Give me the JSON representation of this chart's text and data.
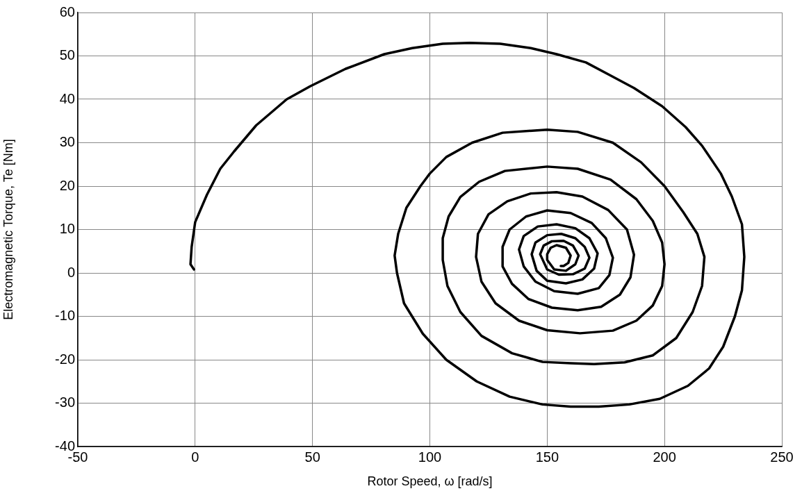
{
  "chart_data": {
    "type": "line",
    "xlabel": "Rotor Speed, ω [rad/s]",
    "ylabel": "Electromagnetic Torque, Te [Nm]",
    "xlim": [
      -50,
      250
    ],
    "ylim": [
      -40,
      60
    ],
    "xticks": [
      -50,
      0,
      50,
      100,
      150,
      200,
      250
    ],
    "yticks": [
      -40,
      -30,
      -20,
      -10,
      0,
      10,
      20,
      30,
      40,
      50,
      60
    ],
    "grid": true,
    "legend": false,
    "marker": "none",
    "line_style": "solid",
    "series": [
      {
        "color": "#000000",
        "x": [
          -0.5,
          -2,
          -1.5,
          0,
          5,
          10.7,
          16.6,
          26,
          39,
          49,
          64,
          80.6,
          92.5,
          105.5,
          117,
          130,
          143,
          154,
          166.5,
          176.6,
          187,
          199,
          209,
          216,
          224,
          228.7,
          233,
          234,
          233,
          230,
          225,
          219,
          210,
          198,
          185,
          172,
          160,
          148,
          134,
          120,
          107,
          97,
          89,
          86,
          85,
          86.5,
          90,
          96,
          100,
          107,
          118,
          131,
          150,
          163,
          178,
          190,
          200,
          208,
          214,
          217,
          216,
          212,
          205,
          195,
          183,
          170,
          160,
          148,
          135,
          122,
          113,
          107.5,
          105.5,
          105.5,
          108,
          113,
          121,
          132,
          150,
          163,
          177,
          188,
          195,
          199,
          200,
          199,
          195,
          188,
          178,
          164,
          150,
          138,
          128,
          122,
          119.7,
          120.5,
          125,
          133,
          143,
          154,
          165,
          176,
          184,
          187,
          185.5,
          181,
          173,
          163,
          152,
          142,
          135,
          131,
          131,
          134,
          141,
          150,
          160,
          169,
          175,
          178,
          176.5,
          172,
          163,
          153,
          145,
          140,
          138,
          140,
          146,
          154,
          162,
          168,
          171.5,
          170,
          165,
          158,
          150,
          145.5,
          143.4,
          145,
          150,
          156,
          162,
          166,
          168,
          166,
          161,
          155,
          150,
          147,
          148.5,
          152,
          157,
          161,
          163.4,
          162,
          158,
          153,
          150,
          150,
          151.5,
          154,
          158,
          160,
          159,
          157,
          155.8
        ],
        "values": [
          0.8,
          2,
          6,
          11.7,
          18,
          24,
          28,
          34,
          40,
          43,
          47,
          50.4,
          51.8,
          52.8,
          53,
          52.8,
          51.8,
          50.4,
          48.5,
          45.6,
          42.6,
          38.4,
          33.6,
          29.3,
          22.9,
          17.6,
          11.2,
          3.7,
          -4,
          -10,
          -17,
          -22,
          -26,
          -29,
          -30.3,
          -30.8,
          -30.8,
          -30.3,
          -28.5,
          -25,
          -20,
          -14,
          -7,
          0,
          4,
          9,
          15,
          20,
          22.9,
          26.7,
          30,
          32.3,
          33,
          32.5,
          30,
          25.5,
          20,
          14,
          9,
          3.7,
          -3,
          -9,
          -15,
          -19,
          -20.6,
          -21,
          -20.8,
          -20.5,
          -18.5,
          -14.5,
          -9,
          -3,
          3,
          8,
          13,
          17.5,
          21,
          23.5,
          24.5,
          24,
          21.5,
          17,
          12,
          7,
          2,
          -3,
          -7.5,
          -11,
          -13.3,
          -13.9,
          -13.2,
          -11,
          -7,
          -2,
          3.7,
          9,
          13.5,
          16.5,
          18.3,
          18.6,
          17.6,
          14.5,
          10,
          4.2,
          -1,
          -5,
          -7.8,
          -8.6,
          -8,
          -6,
          -2.5,
          1.5,
          6,
          10,
          13,
          14.4,
          13.8,
          11.5,
          8,
          3.5,
          -0.5,
          -3.5,
          -4.8,
          -4.2,
          -2,
          1.5,
          5.4,
          8.5,
          10.7,
          11.2,
          10.3,
          8,
          4.5,
          1,
          -1.5,
          -2.4,
          -1.8,
          0.5,
          4.3,
          7,
          8.7,
          9,
          8,
          6,
          3.5,
          1,
          -0.3,
          -0.4,
          0.8,
          4.3,
          6.3,
          7.3,
          7.4,
          6.3,
          4,
          2,
          0.5,
          0.8,
          3,
          4.3,
          5.8,
          6.4,
          5.8,
          4,
          2.3,
          1.6,
          1.6
        ]
      }
    ]
  }
}
